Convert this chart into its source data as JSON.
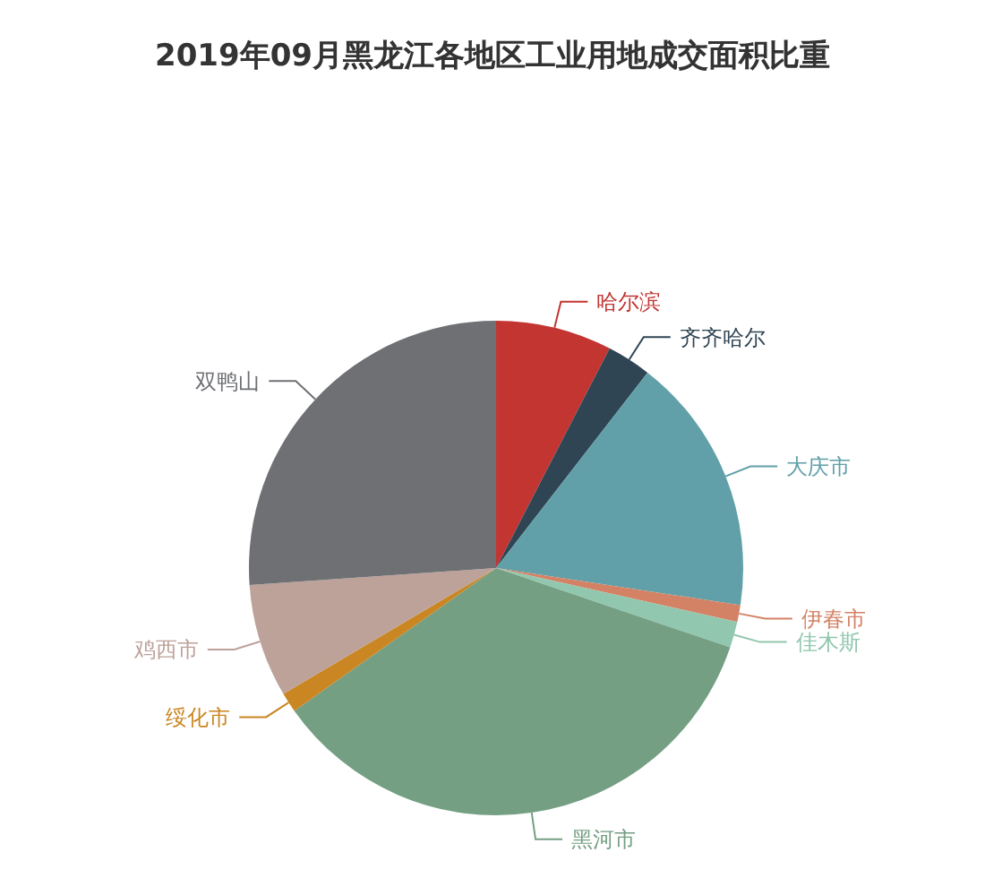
{
  "chart_data": {
    "type": "pie",
    "title": "2019年09月黑龙江各地区工业用地成交面积比重",
    "categories": [
      "哈尔滨",
      "齐齐哈尔",
      "大庆市",
      "伊春市",
      "佳木斯",
      "黑河市",
      "绥化市",
      "鸡西市",
      "双鸭山"
    ],
    "values": [
      7.6,
      2.9,
      16.9,
      1.1,
      1.7,
      35.0,
      1.3,
      7.4,
      26.1
    ],
    "colors": [
      "#c23531",
      "#2f4554",
      "#61a0a8",
      "#d48265",
      "#91c7ae",
      "#749f83",
      "#ca8622",
      "#bda29a",
      "#6e7074"
    ]
  }
}
